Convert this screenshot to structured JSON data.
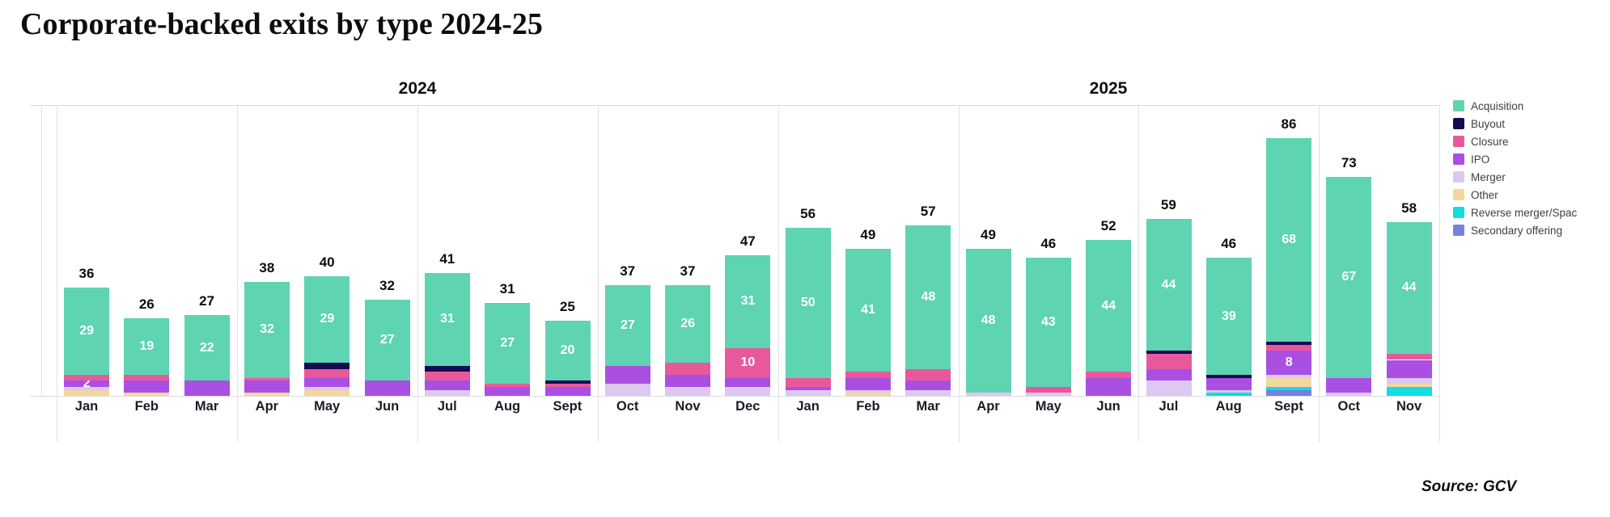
{
  "title": "Corporate-backed exits by type 2024-25",
  "source": "Source: GCV",
  "legend": [
    {
      "key": "acquisition",
      "label": "Acquisition",
      "color": "#5ed4b2"
    },
    {
      "key": "buyout",
      "label": "Buyout",
      "color": "#150a50"
    },
    {
      "key": "closure",
      "label": "Closure",
      "color": "#e8599c"
    },
    {
      "key": "ipo",
      "label": "IPO",
      "color": "#a94fe2"
    },
    {
      "key": "merger",
      "label": "Merger",
      "color": "#dcc8f0"
    },
    {
      "key": "other",
      "label": "Other",
      "color": "#f4d79d"
    },
    {
      "key": "reverse_merger",
      "label": "Reverse merger/Spac",
      "color": "#12dce4"
    },
    {
      "key": "secondary_offering",
      "label": "Secondary offering",
      "color": "#7480e2"
    }
  ],
  "chart_data": {
    "type": "bar",
    "stacked": true,
    "title": "Corporate-backed exits by type 2024-25",
    "xlabel": "",
    "ylabel": "",
    "ylim": [
      0,
      97
    ],
    "grid": "quarterly vertical lines",
    "legend_position": "right",
    "stack_order_bottom_to_top": [
      "secondary_offering",
      "reverse_merger",
      "other",
      "merger",
      "ipo",
      "closure",
      "buyout",
      "acquisition"
    ],
    "year_groups": [
      {
        "label": "2024",
        "months": 12
      },
      {
        "label": "2025",
        "months": 11
      }
    ],
    "categories": [
      "Jan",
      "Feb",
      "Mar",
      "Apr",
      "May",
      "Jun",
      "Jul",
      "Aug",
      "Sept",
      "Oct",
      "Nov",
      "Dec",
      "Jan",
      "Feb",
      "Mar",
      "Apr",
      "May",
      "Jun",
      "Jul",
      "Aug",
      "Sept",
      "Oct",
      "Nov"
    ],
    "bars": [
      {
        "month": "Jan",
        "year": "2024",
        "total": 36,
        "segments": [
          {
            "type": "other",
            "value": 2
          },
          {
            "type": "merger",
            "value": 1
          },
          {
            "type": "ipo",
            "value": 2,
            "show_label": true
          },
          {
            "type": "closure",
            "value": 2
          },
          {
            "type": "acquisition",
            "value": 29,
            "show_label": true
          }
        ]
      },
      {
        "month": "Feb",
        "year": "2024",
        "total": 26,
        "segments": [
          {
            "type": "other",
            "value": 1
          },
          {
            "type": "ipo",
            "value": 4
          },
          {
            "type": "closure",
            "value": 2
          },
          {
            "type": "acquisition",
            "value": 19,
            "show_label": true
          }
        ]
      },
      {
        "month": "Mar",
        "year": "2024",
        "total": 27,
        "segments": [
          {
            "type": "ipo",
            "value": 5
          },
          {
            "type": "acquisition",
            "value": 22,
            "show_label": true
          }
        ]
      },
      {
        "month": "Apr",
        "year": "2024",
        "total": 38,
        "segments": [
          {
            "type": "other",
            "value": 1
          },
          {
            "type": "ipo",
            "value": 4
          },
          {
            "type": "closure",
            "value": 1
          },
          {
            "type": "acquisition",
            "value": 32,
            "show_label": true
          }
        ]
      },
      {
        "month": "May",
        "year": "2024",
        "total": 40,
        "segments": [
          {
            "type": "other",
            "value": 2
          },
          {
            "type": "merger",
            "value": 1
          },
          {
            "type": "ipo",
            "value": 3
          },
          {
            "type": "closure",
            "value": 3
          },
          {
            "type": "buyout",
            "value": 2
          },
          {
            "type": "acquisition",
            "value": 29,
            "show_label": true
          }
        ]
      },
      {
        "month": "Jun",
        "year": "2024",
        "total": 32,
        "segments": [
          {
            "type": "ipo",
            "value": 5
          },
          {
            "type": "acquisition",
            "value": 27,
            "show_label": true
          }
        ]
      },
      {
        "month": "Jul",
        "year": "2024",
        "total": 41,
        "segments": [
          {
            "type": "merger",
            "value": 2
          },
          {
            "type": "ipo",
            "value": 3
          },
          {
            "type": "closure",
            "value": 3
          },
          {
            "type": "buyout",
            "value": 2
          },
          {
            "type": "acquisition",
            "value": 31,
            "show_label": true
          }
        ]
      },
      {
        "month": "Aug",
        "year": "2024",
        "total": 31,
        "segments": [
          {
            "type": "ipo",
            "value": 3
          },
          {
            "type": "closure",
            "value": 1
          },
          {
            "type": "acquisition",
            "value": 27,
            "show_label": true
          }
        ]
      },
      {
        "month": "Sept",
        "year": "2024",
        "total": 25,
        "segments": [
          {
            "type": "ipo",
            "value": 3
          },
          {
            "type": "closure",
            "value": 1
          },
          {
            "type": "buyout",
            "value": 1
          },
          {
            "type": "acquisition",
            "value": 20,
            "show_label": true
          }
        ]
      },
      {
        "month": "Oct",
        "year": "2024",
        "total": 37,
        "segments": [
          {
            "type": "merger",
            "value": 4
          },
          {
            "type": "ipo",
            "value": 6
          },
          {
            "type": "acquisition",
            "value": 27,
            "show_label": true
          }
        ]
      },
      {
        "month": "Nov",
        "year": "2024",
        "total": 37,
        "segments": [
          {
            "type": "merger",
            "value": 3
          },
          {
            "type": "ipo",
            "value": 4
          },
          {
            "type": "closure",
            "value": 4
          },
          {
            "type": "acquisition",
            "value": 26,
            "show_label": true
          }
        ]
      },
      {
        "month": "Dec",
        "year": "2024",
        "total": 47,
        "segments": [
          {
            "type": "merger",
            "value": 3
          },
          {
            "type": "ipo",
            "value": 3
          },
          {
            "type": "closure",
            "value": 10,
            "show_label": true
          },
          {
            "type": "acquisition",
            "value": 31,
            "show_label": true
          }
        ]
      },
      {
        "month": "Jan",
        "year": "2025",
        "total": 56,
        "segments": [
          {
            "type": "merger",
            "value": 2
          },
          {
            "type": "ipo",
            "value": 1
          },
          {
            "type": "closure",
            "value": 3
          },
          {
            "type": "acquisition",
            "value": 50,
            "show_label": true
          }
        ]
      },
      {
        "month": "Feb",
        "year": "2025",
        "total": 49,
        "segments": [
          {
            "type": "other",
            "value": 1
          },
          {
            "type": "merger",
            "value": 1
          },
          {
            "type": "ipo",
            "value": 4
          },
          {
            "type": "closure",
            "value": 2
          },
          {
            "type": "acquisition",
            "value": 41,
            "show_label": true
          }
        ]
      },
      {
        "month": "Mar",
        "year": "2025",
        "total": 57,
        "segments": [
          {
            "type": "merger",
            "value": 2
          },
          {
            "type": "ipo",
            "value": 3
          },
          {
            "type": "closure",
            "value": 4
          },
          {
            "type": "acquisition",
            "value": 48,
            "show_label": true
          }
        ]
      },
      {
        "month": "Apr",
        "year": "2025",
        "total": 49,
        "segments": [
          {
            "type": "merger",
            "value": 1
          },
          {
            "type": "acquisition",
            "value": 48,
            "show_label": true
          }
        ]
      },
      {
        "month": "May",
        "year": "2025",
        "total": 46,
        "segments": [
          {
            "type": "merger",
            "value": 1
          },
          {
            "type": "closure",
            "value": 2
          },
          {
            "type": "acquisition",
            "value": 43,
            "show_label": true
          }
        ]
      },
      {
        "month": "Jun",
        "year": "2025",
        "total": 52,
        "segments": [
          {
            "type": "ipo",
            "value": 6
          },
          {
            "type": "closure",
            "value": 2
          },
          {
            "type": "acquisition",
            "value": 44,
            "show_label": true
          }
        ]
      },
      {
        "month": "Jul",
        "year": "2025",
        "total": 59,
        "segments": [
          {
            "type": "merger",
            "value": 5
          },
          {
            "type": "ipo",
            "value": 4
          },
          {
            "type": "closure",
            "value": 5
          },
          {
            "type": "buyout",
            "value": 1
          },
          {
            "type": "acquisition",
            "value": 44,
            "show_label": true
          }
        ]
      },
      {
        "month": "Aug",
        "year": "2025",
        "total": 46,
        "segments": [
          {
            "type": "reverse_merger",
            "value": 1
          },
          {
            "type": "merger",
            "value": 1
          },
          {
            "type": "ipo",
            "value": 4
          },
          {
            "type": "buyout",
            "value": 1
          },
          {
            "type": "acquisition",
            "value": 39,
            "show_label": true
          }
        ]
      },
      {
        "month": "Sept",
        "year": "2025",
        "total": 86,
        "segments": [
          {
            "type": "secondary_offering",
            "value": 2
          },
          {
            "type": "reverse_merger",
            "value": 1
          },
          {
            "type": "other",
            "value": 3
          },
          {
            "type": "merger",
            "value": 1
          },
          {
            "type": "ipo",
            "value": 8,
            "show_label": true
          },
          {
            "type": "closure",
            "value": 2
          },
          {
            "type": "buyout",
            "value": 1
          },
          {
            "type": "acquisition",
            "value": 68,
            "show_label": true
          }
        ]
      },
      {
        "month": "Oct",
        "year": "2025",
        "total": 73,
        "segments": [
          {
            "type": "merger",
            "value": 1
          },
          {
            "type": "ipo",
            "value": 5
          },
          {
            "type": "acquisition",
            "value": 67,
            "show_label": true
          }
        ]
      },
      {
        "month": "Nov",
        "year": "2025",
        "total": 58,
        "segments": [
          {
            "type": "reverse_merger",
            "value": 3
          },
          {
            "type": "other",
            "value": 1
          },
          {
            "type": "merger",
            "value": 2
          },
          {
            "type": "ipo",
            "value": 6
          },
          {
            "type": "closure",
            "value": 2
          },
          {
            "type": "acquisition",
            "value": 44,
            "show_label": true
          }
        ]
      }
    ]
  }
}
